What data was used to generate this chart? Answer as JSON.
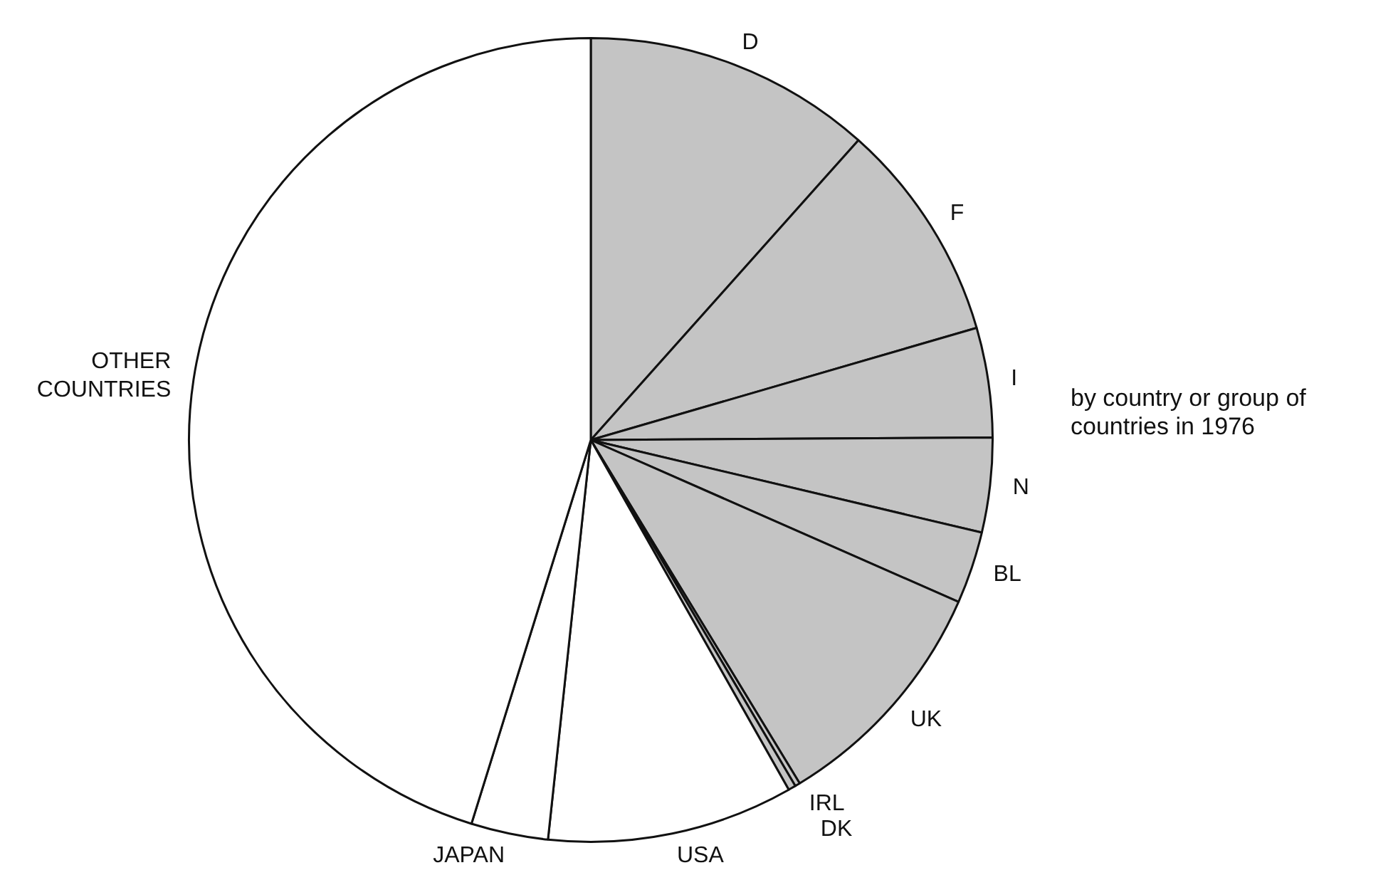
{
  "chart_data": {
    "type": "pie",
    "title": "by country or group of countries in 1976",
    "categories": [
      "D",
      "F",
      "I",
      "N",
      "BL",
      "UK",
      "IRL",
      "DK",
      "USA",
      "JAPAN",
      "OTHER COUNTRIES"
    ],
    "values": [
      11.6,
      8.9,
      4.4,
      3.8,
      2.9,
      9.7,
      0.2,
      0.3,
      9.9,
      3.1,
      45.2
    ],
    "colors": [
      "#c4c4c4",
      "#c4c4c4",
      "#c4c4c4",
      "#c4c4c4",
      "#c4c4c4",
      "#c4c4c4",
      "#c4c4c4",
      "#c4c4c4",
      "#ffffff",
      "#ffffff",
      "#ffffff"
    ],
    "legend": false
  }
}
